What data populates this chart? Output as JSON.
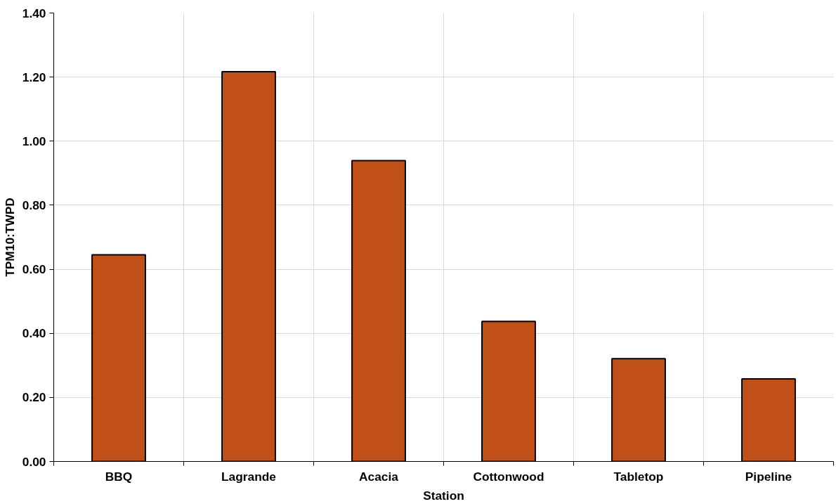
{
  "chart_data": {
    "type": "bar",
    "xlabel": "Station",
    "ylabel": "TPM10:TWPD",
    "categories": [
      "BBQ",
      "Lagrande",
      "Acacia",
      "Cottonwood",
      "Tabletop",
      "Pipeline"
    ],
    "values": [
      0.645,
      1.217,
      0.939,
      0.437,
      0.321,
      0.258
    ],
    "color": "#c05018",
    "ylim": [
      0,
      1.4
    ],
    "yticks": [
      {
        "value": 0,
        "label": "0.00"
      },
      {
        "value": 0.2,
        "label": "0.20"
      },
      {
        "value": 0.4,
        "label": "0.40"
      },
      {
        "value": 0.6,
        "label": "0.60"
      },
      {
        "value": 0.8,
        "label": "0.80"
      },
      {
        "value": 1.0,
        "label": "1.00"
      },
      {
        "value": 1.2,
        "label": "1.20"
      },
      {
        "value": 1.4,
        "label": "1.40"
      }
    ],
    "grid": true
  }
}
